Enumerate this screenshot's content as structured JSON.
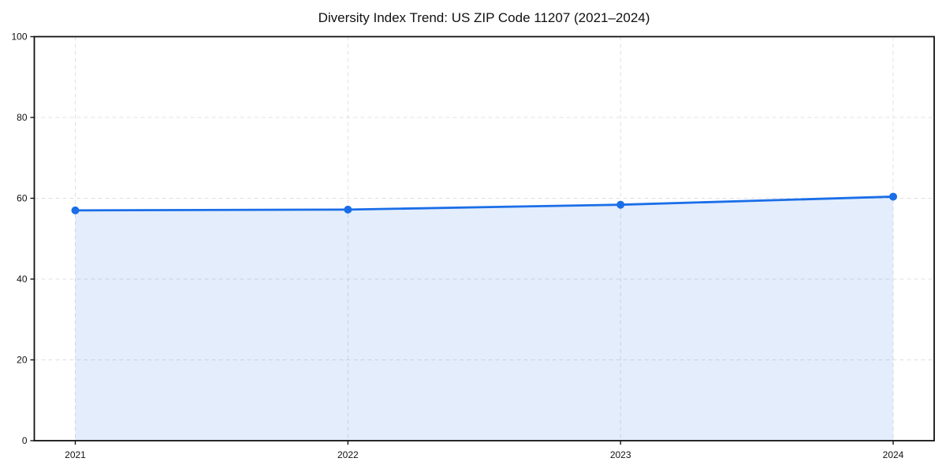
{
  "chart_data": {
    "type": "area",
    "title": "Diversity Index Trend: US ZIP Code 11207 (2021–2024)",
    "x": [
      2021,
      2022,
      2023,
      2024
    ],
    "series": [
      {
        "name": "Diversity Index",
        "values": [
          57.0,
          57.2,
          58.4,
          60.4
        ]
      }
    ],
    "xlabel": "",
    "ylabel": "",
    "ylim": [
      0,
      100
    ],
    "yticks": [
      0,
      20,
      40,
      60,
      80,
      100
    ],
    "grid": true,
    "grid_style": "dashed",
    "legend_position": "none",
    "colors": {
      "line": "#1a6ee8",
      "marker": "#1a6ee8",
      "fill_opacity": 0.12,
      "grid": "#e0e0e0",
      "axis": "#111111",
      "title": "#111111",
      "background": "#ffffff"
    }
  }
}
